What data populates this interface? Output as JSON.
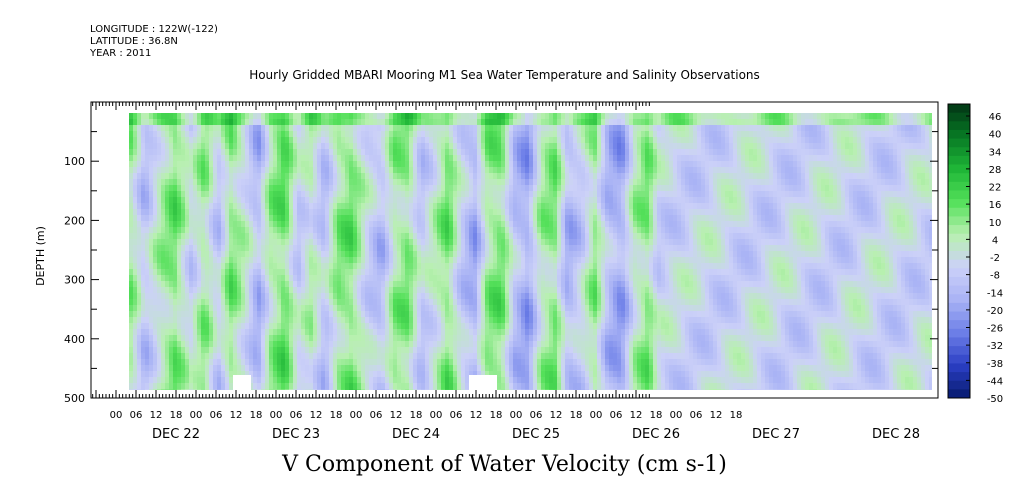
{
  "header": {
    "longitude": "LONGITUDE : 122W(-122)",
    "latitude": "LATITUDE : 36.8N",
    "year": "YEAR : 2011"
  },
  "chart_data": {
    "type": "heatmap",
    "title": "Hourly Gridded MBARI Mooring M1 Sea Water Temperature and Salinity Observations",
    "bottom_title": "V Component of Water Velocity (cm s-1)",
    "xlabel": "",
    "ylabel": "DEPTH (m)",
    "ylim": [
      500,
      0
    ],
    "y_ticks": [
      100,
      200,
      300,
      400,
      500
    ],
    "x_hour_ticks": [
      "00",
      "06",
      "12",
      "18",
      "00",
      "06",
      "12",
      "18",
      "00",
      "06",
      "12",
      "18",
      "00",
      "06",
      "12",
      "18",
      "00",
      "06",
      "12",
      "18",
      "00",
      "06",
      "12",
      "18",
      "00",
      "06",
      "12",
      "18",
      "00",
      "06",
      "12",
      "18"
    ],
    "x_day_labels": [
      "DEC 22",
      "DEC 23",
      "DEC 24",
      "DEC 25",
      "DEC 26",
      "DEC 27",
      "DEC 28"
    ],
    "colorbar_labels": [
      "46",
      "40",
      "34",
      "28",
      "22",
      "16",
      "10",
      "4",
      "-2",
      "-8",
      "-14",
      "-20",
      "-26",
      "-32",
      "-38",
      "-44",
      "-50"
    ],
    "colorbar_range": [
      -50,
      52
    ],
    "colormap": [
      "#061a6e",
      "#2b3fc4",
      "#6d7fe8",
      "#a9b3f5",
      "#ccd1f8",
      "#b8f0b0",
      "#54e05a",
      "#1fb637",
      "#077a24",
      "#023515"
    ],
    "bands": [
      {
        "t": 0,
        "v": -6
      },
      {
        "t": 4,
        "v": 8
      },
      {
        "t": 8,
        "v": -10
      },
      {
        "t": 13,
        "v": 6
      },
      {
        "t": 17,
        "v": 14
      },
      {
        "t": 22,
        "v": -4
      },
      {
        "t": 26,
        "v": 10
      },
      {
        "t": 30,
        "v": -8
      },
      {
        "t": 34,
        "v": 12
      },
      {
        "t": 38,
        "v": 2
      },
      {
        "t": 42,
        "v": -14
      },
      {
        "t": 46,
        "v": 8
      },
      {
        "t": 50,
        "v": 16
      },
      {
        "t": 54,
        "v": -6
      },
      {
        "t": 58,
        "v": 4
      },
      {
        "t": 62,
        "v": -10
      },
      {
        "t": 66,
        "v": 10
      },
      {
        "t": 70,
        "v": 14
      },
      {
        "t": 75,
        "v": -4
      },
      {
        "t": 79,
        "v": -12
      },
      {
        "t": 83,
        "v": 8
      },
      {
        "t": 87,
        "v": 12
      },
      {
        "t": 91,
        "v": -8
      },
      {
        "t": 95,
        "v": 2
      },
      {
        "t": 99,
        "v": 14
      },
      {
        "t": 103,
        "v": -6
      },
      {
        "t": 107,
        "v": -16
      },
      {
        "t": 111,
        "v": 10
      },
      {
        "t": 115,
        "v": 14
      },
      {
        "t": 119,
        "v": -10
      },
      {
        "t": 123,
        "v": -18
      },
      {
        "t": 127,
        "v": 6
      },
      {
        "t": 131,
        "v": 12
      },
      {
        "t": 135,
        "v": -14
      },
      {
        "t": 139,
        "v": -6
      },
      {
        "t": 143,
        "v": 10
      },
      {
        "t": 147,
        "v": -12
      },
      {
        "t": 151,
        "v": -18
      },
      {
        "t": 155,
        "v": 4
      },
      {
        "t": 159,
        "v": 12
      },
      {
        "t": 162,
        "v": -4
      }
    ]
  }
}
